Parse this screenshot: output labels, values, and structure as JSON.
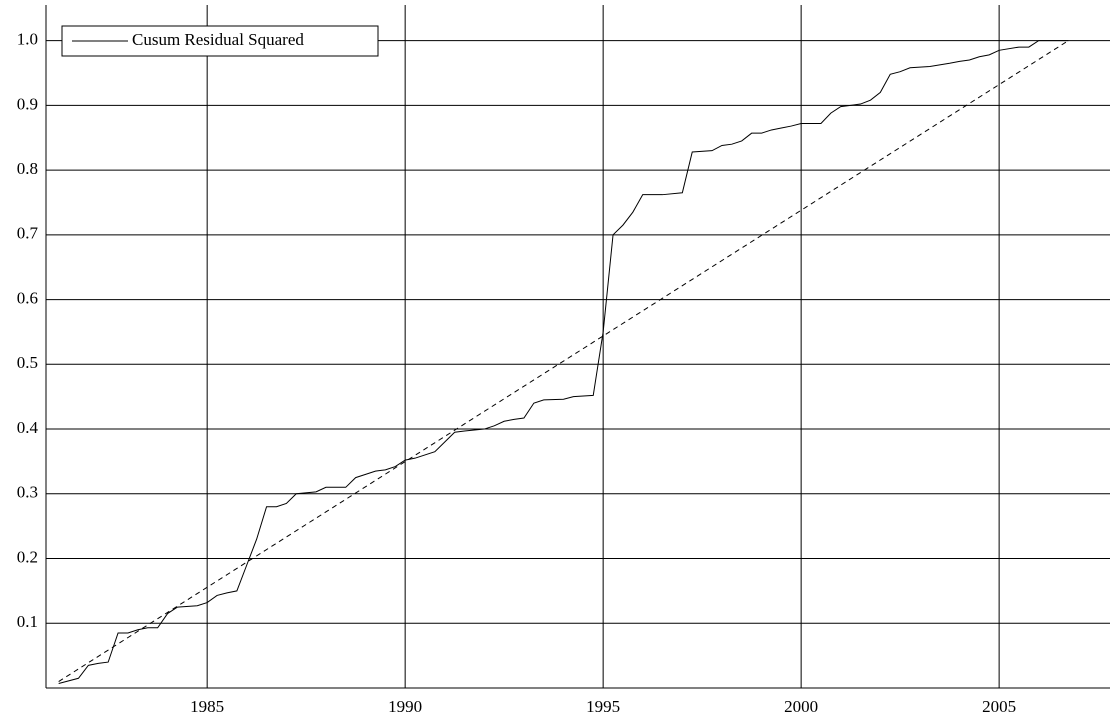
{
  "chart_data": {
    "type": "line",
    "series": [
      {
        "name": "Cusum Residual Squared",
        "color": "#000000",
        "dash": false,
        "x": [
          1981.25,
          1981.75,
          1982.0,
          1982.25,
          1982.5,
          1982.75,
          1983.0,
          1983.25,
          1983.5,
          1983.75,
          1984.0,
          1984.25,
          1984.75,
          1985.0,
          1985.25,
          1985.5,
          1985.75,
          1986.0,
          1986.25,
          1986.5,
          1986.75,
          1987.0,
          1987.25,
          1987.75,
          1988.0,
          1988.5,
          1988.75,
          1989.0,
          1989.25,
          1989.5,
          1989.75,
          1990.0,
          1990.25,
          1990.75,
          1991.0,
          1991.25,
          1991.5,
          1992.0,
          1992.25,
          1992.5,
          1992.75,
          1993.0,
          1993.25,
          1993.5,
          1994.0,
          1994.25,
          1994.75,
          1995.0,
          1995.25,
          1995.5,
          1995.75,
          1996.0,
          1996.5,
          1997.0,
          1997.25,
          1997.75,
          1998.0,
          1998.25,
          1998.5,
          1998.75,
          1999.0,
          1999.25,
          1999.5,
          1999.75,
          2000.0,
          2000.5,
          2000.75,
          2001.0,
          2001.25,
          2001.5,
          2001.75,
          2002.0,
          2002.25,
          2002.5,
          2002.75,
          2003.25,
          2003.75,
          2004.0,
          2004.25,
          2004.5,
          2004.75,
          2005.0,
          2005.5,
          2005.75,
          2006.0,
          2006.75
        ],
        "values": [
          0.007,
          0.015,
          0.035,
          0.038,
          0.04,
          0.085,
          0.085,
          0.09,
          0.093,
          0.093,
          0.115,
          0.125,
          0.127,
          0.132,
          0.143,
          0.147,
          0.15,
          0.19,
          0.23,
          0.28,
          0.28,
          0.285,
          0.3,
          0.303,
          0.31,
          0.31,
          0.325,
          0.33,
          0.335,
          0.337,
          0.342,
          0.352,
          0.355,
          0.365,
          0.38,
          0.395,
          0.397,
          0.4,
          0.405,
          0.412,
          0.415,
          0.417,
          0.44,
          0.445,
          0.446,
          0.45,
          0.452,
          0.55,
          0.7,
          0.715,
          0.735,
          0.762,
          0.762,
          0.765,
          0.828,
          0.83,
          0.838,
          0.84,
          0.845,
          0.857,
          0.857,
          0.862,
          0.865,
          0.868,
          0.872,
          0.872,
          0.888,
          0.898,
          0.9,
          0.902,
          0.908,
          0.92,
          0.948,
          0.952,
          0.958,
          0.96,
          0.965,
          0.968,
          0.97,
          0.975,
          0.978,
          0.985,
          0.99,
          0.99,
          1.0,
          1.0
        ]
      },
      {
        "color": "#000000",
        "dash": true,
        "x": [
          1981.25,
          2006.75
        ],
        "values": [
          0.01,
          1.0
        ]
      }
    ],
    "xlim": [
      1980.93,
      2007.8
    ],
    "xticks": [
      1985,
      1990,
      1995,
      2000,
      2005
    ],
    "ylim": [
      0,
      1.055
    ],
    "yticks": [
      0.1,
      0.2,
      0.3,
      0.4,
      0.5,
      0.6,
      0.7,
      0.8,
      0.9,
      {
        "value": 1,
        "label": "1.0"
      }
    ],
    "grid": true,
    "legend": "upper left"
  }
}
